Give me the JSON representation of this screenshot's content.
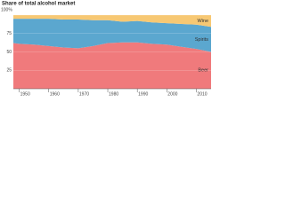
{
  "chart_data": {
    "type": "stacked_area",
    "title": "Share of total alcohol market",
    "x": [
      1948,
      1950,
      1955,
      1960,
      1965,
      1970,
      1975,
      1980,
      1985,
      1990,
      1995,
      2000,
      2005,
      2010,
      2015
    ],
    "series": [
      {
        "name": "Beer",
        "color": "#f07a7c",
        "values": [
          62,
          61,
          60,
          58,
          56,
          55,
          58,
          62,
          63,
          63,
          61,
          60,
          57,
          54,
          50
        ]
      },
      {
        "name": "Spirits",
        "color": "#5ba7cf",
        "values": [
          33,
          34,
          35,
          37,
          38,
          39,
          35,
          31,
          28,
          29,
          29,
          29,
          31,
          33,
          34
        ]
      },
      {
        "name": "Wine",
        "color": "#f7c873",
        "values": [
          5,
          5,
          5,
          5,
          6,
          6,
          7,
          7,
          9,
          8,
          10,
          11,
          12,
          13,
          16
        ]
      }
    ],
    "xlim": [
      1948,
      2015
    ],
    "xticks": [
      1950,
      1960,
      1970,
      1980,
      1990,
      2000,
      2010
    ],
    "ylim": [
      0,
      100
    ],
    "yticks": [
      25,
      50,
      75,
      {
        "value": 100,
        "label": "100%"
      }
    ]
  }
}
